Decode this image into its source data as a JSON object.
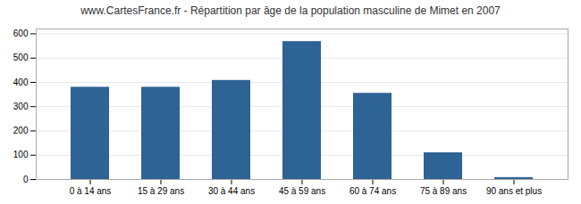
{
  "chart_data": {
    "type": "bar",
    "title": "www.CartesFrance.fr - Répartition par âge de la population masculine de Mimet en 2007",
    "categories": [
      "0 à 14 ans",
      "15 à 29 ans",
      "30 à 44 ans",
      "45 à 59 ans",
      "60 à 74 ans",
      "75 à 89 ans",
      "90 ans et plus"
    ],
    "values": [
      380,
      380,
      408,
      568,
      355,
      110,
      8
    ],
    "color": "#2e6395",
    "ylim": [
      0,
      620
    ],
    "yticks": [
      0,
      100,
      200,
      300,
      400,
      500,
      600
    ],
    "grid": true
  }
}
